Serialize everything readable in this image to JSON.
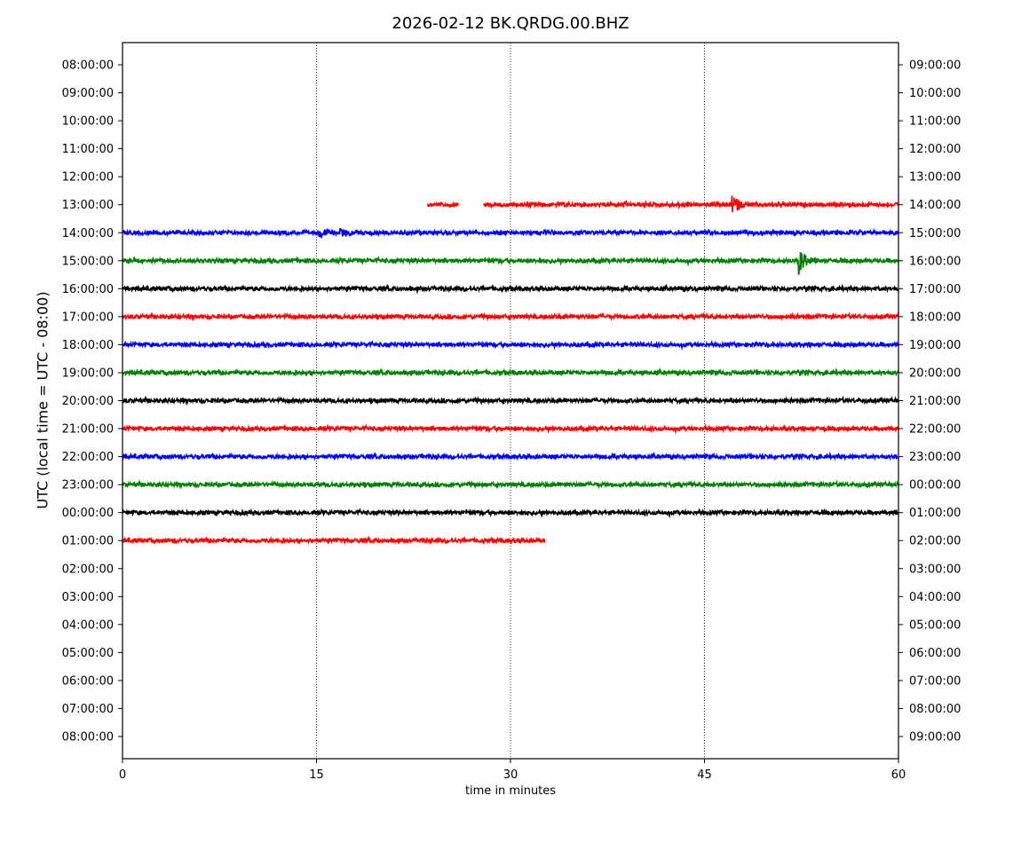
{
  "chart_data": {
    "type": "line",
    "title": "2026-02-12 BK.QRDG.00.BHZ",
    "xlabel": "time in minutes",
    "ylabel": "UTC (local time = UTC - 08:00)",
    "xlim": [
      0,
      60
    ],
    "xticks": [
      "0",
      "15",
      "30",
      "45",
      "60"
    ],
    "xtick_values": [
      0,
      15,
      30,
      45,
      60
    ],
    "grid": "vertical dotted at 15, 30, 45",
    "left_labels": [
      "08:00:00",
      "09:00:00",
      "10:00:00",
      "11:00:00",
      "12:00:00",
      "13:00:00",
      "14:00:00",
      "15:00:00",
      "16:00:00",
      "17:00:00",
      "18:00:00",
      "19:00:00",
      "20:00:00",
      "21:00:00",
      "22:00:00",
      "23:00:00",
      "00:00:00",
      "01:00:00",
      "02:00:00",
      "03:00:00",
      "04:00:00",
      "05:00:00",
      "06:00:00",
      "07:00:00",
      "08:00:00"
    ],
    "right_labels": [
      "09:00:00",
      "10:00:00",
      "11:00:00",
      "12:00:00",
      "13:00:00",
      "14:00:00",
      "15:00:00",
      "16:00:00",
      "17:00:00",
      "18:00:00",
      "19:00:00",
      "20:00:00",
      "21:00:00",
      "22:00:00",
      "23:00:00",
      "00:00:00",
      "01:00:00",
      "02:00:00",
      "03:00:00",
      "04:00:00",
      "05:00:00",
      "06:00:00",
      "07:00:00",
      "08:00:00",
      "09:00:00"
    ],
    "colors": [
      "#ff0000",
      "#0000ff",
      "#008000",
      "#000000"
    ],
    "traces": [
      {
        "row": 5,
        "color": "#ff0000",
        "segments": [
          [
            23.6,
            26.0
          ],
          [
            27.9,
            60
          ]
        ],
        "events": [
          {
            "minute": 47.2,
            "amplitude": 3.5
          }
        ]
      },
      {
        "row": 6,
        "color": "#0000ff",
        "segments": [
          [
            0,
            60
          ]
        ],
        "events": [
          {
            "minute": 15.3,
            "amplitude": 1.6
          },
          {
            "minute": 16.9,
            "amplitude": 1.3
          }
        ]
      },
      {
        "row": 7,
        "color": "#008000",
        "segments": [
          [
            0,
            60
          ]
        ],
        "events": [
          {
            "minute": 52.3,
            "amplitude": 5
          }
        ]
      },
      {
        "row": 8,
        "color": "#000000",
        "segments": [
          [
            0,
            60
          ]
        ],
        "events": []
      },
      {
        "row": 9,
        "color": "#ff0000",
        "segments": [
          [
            0,
            60
          ]
        ],
        "events": []
      },
      {
        "row": 10,
        "color": "#0000ff",
        "segments": [
          [
            0,
            60
          ]
        ],
        "events": []
      },
      {
        "row": 11,
        "color": "#008000",
        "segments": [
          [
            0,
            60
          ]
        ],
        "events": []
      },
      {
        "row": 12,
        "color": "#000000",
        "segments": [
          [
            0,
            60
          ]
        ],
        "events": []
      },
      {
        "row": 13,
        "color": "#ff0000",
        "segments": [
          [
            0,
            60
          ]
        ],
        "events": []
      },
      {
        "row": 14,
        "color": "#0000ff",
        "segments": [
          [
            0,
            60
          ]
        ],
        "events": []
      },
      {
        "row": 15,
        "color": "#008000",
        "segments": [
          [
            0,
            60
          ]
        ],
        "events": []
      },
      {
        "row": 16,
        "color": "#000000",
        "segments": [
          [
            0,
            60
          ]
        ],
        "events": []
      },
      {
        "row": 17,
        "color": "#ff0000",
        "segments": [
          [
            0,
            32.7
          ]
        ],
        "events": []
      }
    ]
  }
}
